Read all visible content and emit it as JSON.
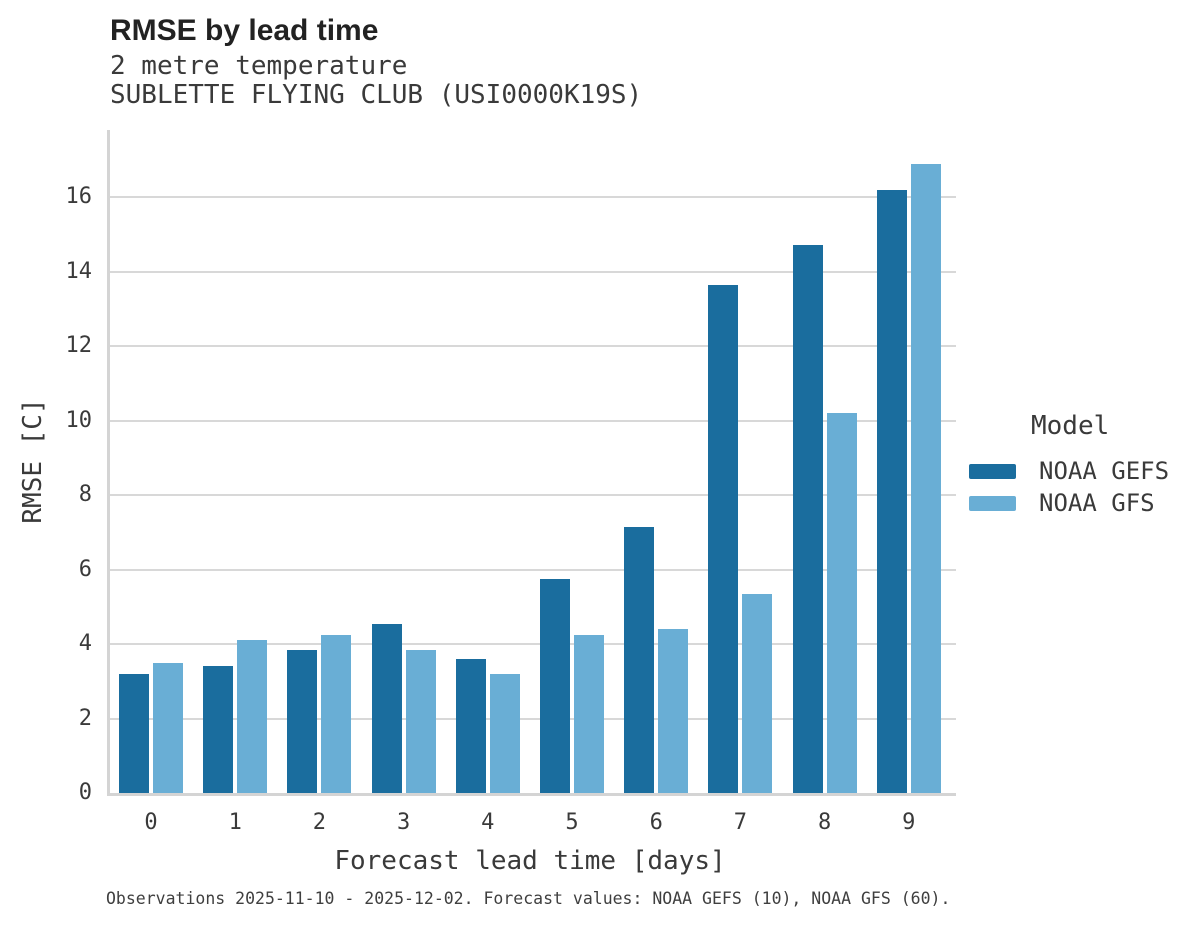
{
  "colors": {
    "gefs_blue": "#1a6d9e",
    "gfs_blue": "#69aed5",
    "grid_gray": "#d8d8d8",
    "spine_gray": "#d4d4d4",
    "text_dark": "#222222",
    "text_gray": "#3a3a3a"
  },
  "chart_data": {
    "type": "bar",
    "title": "RMSE by lead time",
    "subtitle_variable": "2 metre temperature",
    "subtitle_station": "SUBLETTE FLYING CLUB (USI0000K19S)",
    "xlabel": "Forecast lead time [days]",
    "ylabel": "RMSE [C]",
    "categories": [
      "0",
      "1",
      "2",
      "3",
      "4",
      "5",
      "6",
      "7",
      "8",
      "9"
    ],
    "series": [
      {
        "name": "NOAA GEFS",
        "color": "#1a6d9e",
        "values": [
          3.2,
          3.4,
          3.85,
          4.55,
          3.6,
          5.75,
          7.15,
          13.65,
          14.7,
          16.2
        ]
      },
      {
        "name": "NOAA GFS",
        "color": "#69aed5",
        "values": [
          3.5,
          4.1,
          4.25,
          3.85,
          3.2,
          4.25,
          4.4,
          5.35,
          10.2,
          16.9
        ]
      }
    ],
    "ylim": [
      0,
      17.8
    ],
    "yticks": [
      0,
      2,
      4,
      6,
      8,
      10,
      12,
      14,
      16
    ],
    "grid": "horizontal",
    "legend_title": "Model",
    "legend_position": "right",
    "caption": "Observations 2025-11-10 - 2025-12-02. Forecast values: NOAA GEFS (10), NOAA GFS (60)."
  }
}
